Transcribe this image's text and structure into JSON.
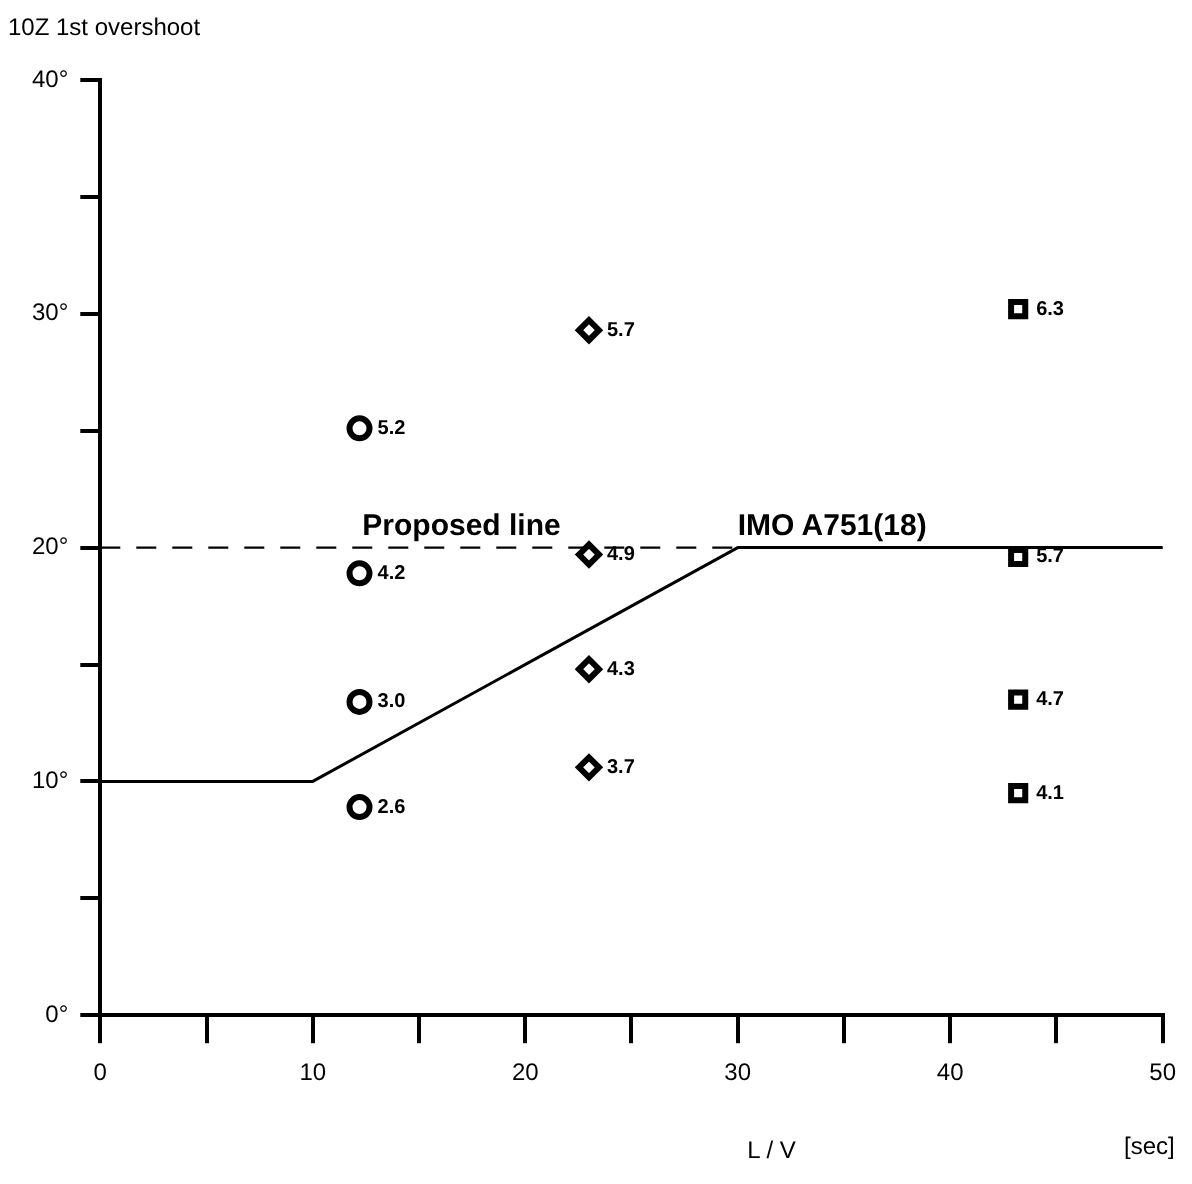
{
  "chart_data": {
    "type": "scatter",
    "ylabel": "10Z 1st overshoot",
    "xlabel": "L / V",
    "annotations": [
      "[sec]",
      {
        "text": "5.2",
        "x": 12.2,
        "y": 25.1
      },
      {
        "text": "4.2",
        "x": 12.2,
        "y": 18.9
      },
      {
        "text": "3.0",
        "x": 12.2,
        "y": 13.4
      },
      {
        "text": "2.6",
        "x": 12.2,
        "y": 8.9
      },
      {
        "text": "5.7",
        "x": 23,
        "y": 29.3
      },
      {
        "text": "4.9",
        "x": 23,
        "y": 19.7
      },
      {
        "text": "4.3",
        "x": 23,
        "y": 14.8
      },
      {
        "text": "3.7",
        "x": 23,
        "y": 10.6
      },
      {
        "text": "6.3",
        "x": 43.2,
        "y": 30.2
      },
      {
        "text": "5.7",
        "x": 43.2,
        "y": 19.6
      },
      {
        "text": "4.7",
        "x": 43.2,
        "y": 13.5
      },
      {
        "text": "4.1",
        "x": 43.2,
        "y": 9.5
      }
    ],
    "xlim": [
      0,
      50
    ],
    "xticks": [
      0,
      {
        "value": 5,
        "label": null
      },
      10,
      {
        "value": 15,
        "label": null
      },
      20,
      {
        "value": 25,
        "label": null
      },
      30,
      {
        "value": 35,
        "label": null
      },
      40,
      {
        "value": 45,
        "label": null
      },
      50
    ],
    "ylim": [
      0,
      40
    ],
    "yticks": [
      {
        "value": 0,
        "label": "0°"
      },
      {
        "value": 5,
        "label": null
      },
      {
        "value": 10,
        "label": "10°"
      },
      {
        "value": 15,
        "label": null
      },
      {
        "value": 20,
        "label": "20°"
      },
      {
        "value": 25,
        "label": null
      },
      {
        "value": 30,
        "label": "30°"
      },
      {
        "value": 35,
        "label": null
      },
      {
        "value": 40,
        "label": "40°"
      }
    ],
    "grid": false,
    "legend": false,
    "ref_lines": [
      {
        "axis": "y",
        "value": 20,
        "label": "Proposed line",
        "line_style": "dashed",
        "color": "#000000"
      }
    ],
    "series": [
      {
        "marker": "circle",
        "color": "#000000",
        "x": [
          12.2,
          12.2,
          12.2,
          12.2
        ],
        "values": [
          25.1,
          18.9,
          13.4,
          8.9
        ]
      },
      {
        "marker": "diamond",
        "color": "#000000",
        "x": [
          23,
          23,
          23,
          23
        ],
        "values": [
          29.3,
          19.7,
          14.8,
          10.6
        ]
      },
      {
        "marker": "square",
        "color": "#000000",
        "x": [
          43.2,
          43.2,
          43.2,
          43.2
        ],
        "values": [
          30.2,
          19.6,
          13.5,
          9.5
        ]
      },
      {
        "type": "line",
        "name": "IMO A751(18)",
        "color": "#000000",
        "line_style": "solid",
        "marker": "none",
        "x": [
          0,
          10,
          30,
          50
        ],
        "values": [
          10,
          10,
          20,
          20
        ]
      }
    ]
  }
}
